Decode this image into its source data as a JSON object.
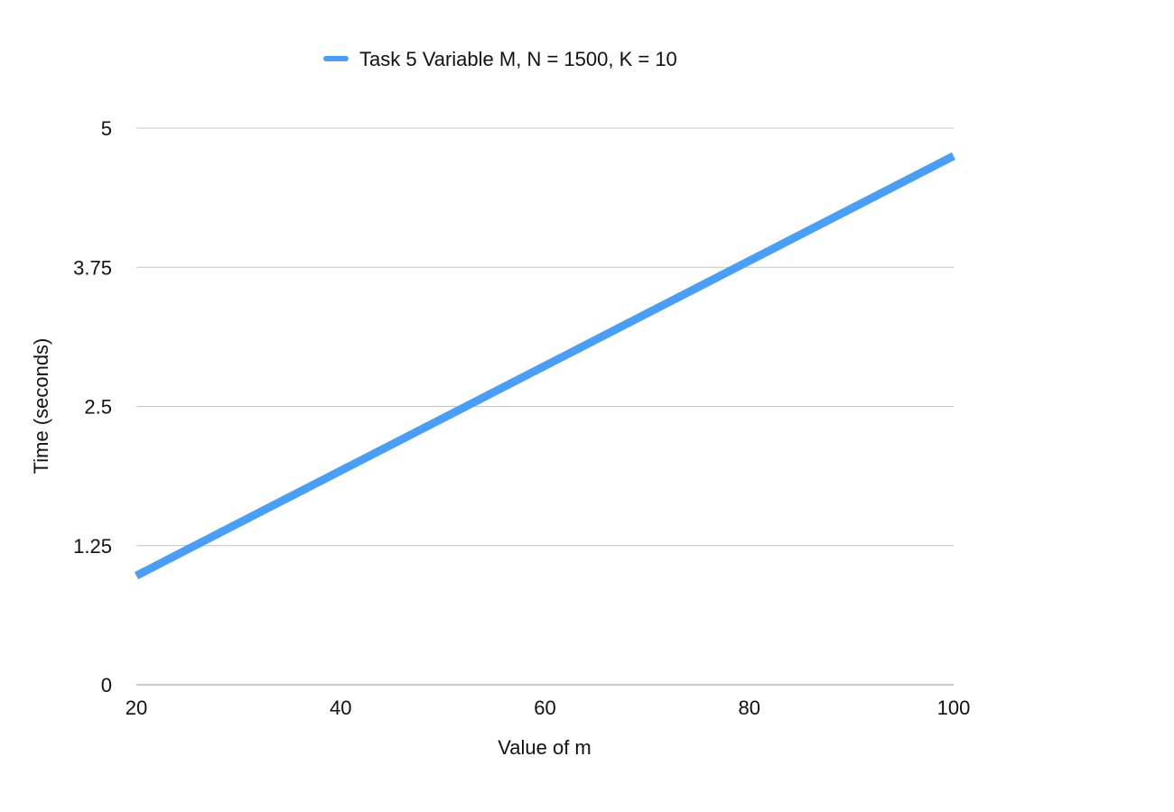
{
  "chart_data": {
    "type": "line",
    "title": "",
    "xlabel": "Value of m",
    "ylabel": "Time (seconds)",
    "x": [
      20,
      100
    ],
    "xticks": [
      "20",
      "40",
      "60",
      "80",
      "100"
    ],
    "yticks": [
      "0",
      "1.25",
      "2.5",
      "3.75",
      "5"
    ],
    "xlim": [
      20,
      100
    ],
    "ylim": [
      0,
      5
    ],
    "grid": "horizontal",
    "legend_position": "top-center",
    "series": [
      {
        "name": "Task 5 Variable M, N = 1500, K = 10",
        "color": "#4a9ef5",
        "x": [
          20,
          100
        ],
        "values": [
          0.98,
          4.75
        ]
      }
    ]
  }
}
